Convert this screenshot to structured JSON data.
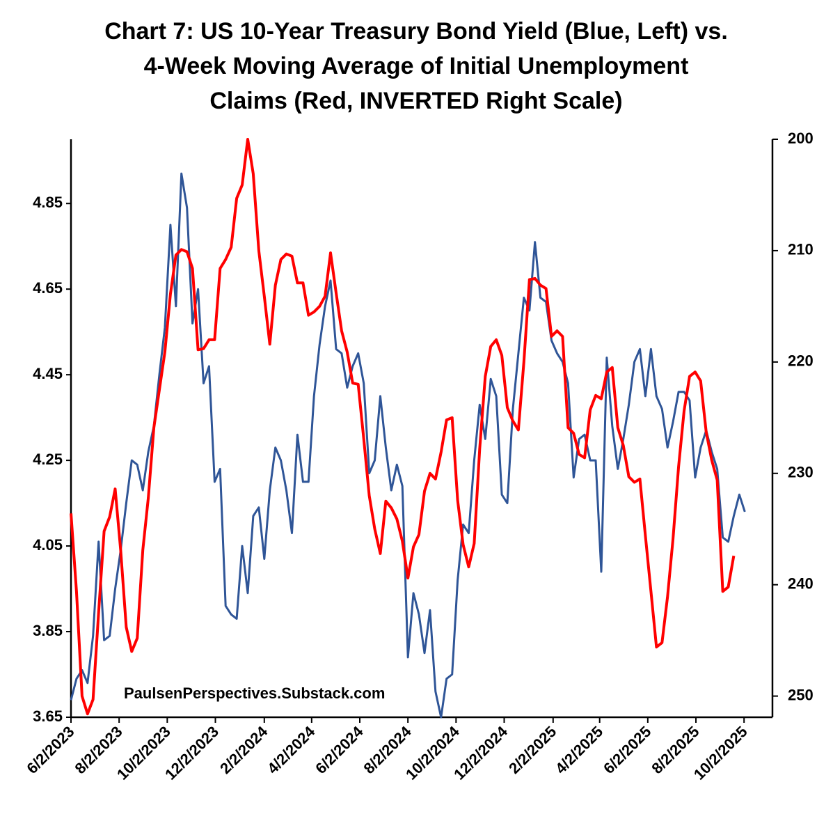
{
  "chart_data": {
    "type": "line",
    "title": [
      "Chart 7: US 10-Year Treasury Bond Yield (Blue, Left) vs.",
      "4-Week Moving Average of Initial Unemployment",
      "Claims (Red, INVERTED Right Scale)"
    ],
    "annotation": "PaulsenPerspectives.Substack.com",
    "x": [
      "2023-06-02",
      "2023-06-09",
      "2023-06-16",
      "2023-06-23",
      "2023-06-30",
      "2023-07-07",
      "2023-07-14",
      "2023-07-21",
      "2023-07-28",
      "2023-08-04",
      "2023-08-11",
      "2023-08-18",
      "2023-08-25",
      "2023-09-01",
      "2023-09-08",
      "2023-09-15",
      "2023-09-22",
      "2023-09-29",
      "2023-10-06",
      "2023-10-13",
      "2023-10-20",
      "2023-10-27",
      "2023-11-03",
      "2023-11-10",
      "2023-11-17",
      "2023-11-24",
      "2023-12-01",
      "2023-12-08",
      "2023-12-15",
      "2023-12-22",
      "2023-12-29",
      "2024-01-05",
      "2024-01-12",
      "2024-01-19",
      "2024-01-26",
      "2024-02-02",
      "2024-02-09",
      "2024-02-16",
      "2024-02-23",
      "2024-03-01",
      "2024-03-08",
      "2024-03-15",
      "2024-03-22",
      "2024-03-29",
      "2024-04-05",
      "2024-04-12",
      "2024-04-19",
      "2024-04-26",
      "2024-05-03",
      "2024-05-10",
      "2024-05-17",
      "2024-05-24",
      "2024-05-31",
      "2024-06-07",
      "2024-06-14",
      "2024-06-21",
      "2024-06-28",
      "2024-07-05",
      "2024-07-12",
      "2024-07-19",
      "2024-07-26",
      "2024-08-02",
      "2024-08-09",
      "2024-08-16",
      "2024-08-23",
      "2024-08-30",
      "2024-09-06",
      "2024-09-13",
      "2024-09-20",
      "2024-09-27",
      "2024-10-04",
      "2024-10-11",
      "2024-10-18",
      "2024-10-25",
      "2024-11-01",
      "2024-11-08",
      "2024-11-15",
      "2024-11-22",
      "2024-11-29",
      "2024-12-06",
      "2024-12-13",
      "2024-12-20",
      "2024-12-27",
      "2025-01-03",
      "2025-01-10",
      "2025-01-17",
      "2025-01-24",
      "2025-01-31",
      "2025-02-07",
      "2025-02-14",
      "2025-02-21",
      "2025-02-28",
      "2025-03-07",
      "2025-03-14",
      "2025-03-21",
      "2025-03-28",
      "2025-04-04",
      "2025-04-11",
      "2025-04-18",
      "2025-04-25",
      "2025-05-02",
      "2025-05-09",
      "2025-05-16",
      "2025-05-23",
      "2025-05-30",
      "2025-06-06",
      "2025-06-13",
      "2025-06-20",
      "2025-06-27",
      "2025-07-04",
      "2025-07-11",
      "2025-07-18",
      "2025-07-25",
      "2025-08-01",
      "2025-08-08",
      "2025-08-15",
      "2025-08-22",
      "2025-08-29",
      "2025-09-05",
      "2025-09-12",
      "2025-09-19",
      "2025-09-26",
      "2025-10-03"
    ],
    "series": [
      {
        "name": "US 10-Year Treasury Bond Yield",
        "color": "#2f5597",
        "axis": "y",
        "values": [
          3.69,
          3.74,
          3.76,
          3.73,
          3.84,
          4.06,
          3.83,
          3.84,
          3.95,
          4.04,
          4.15,
          4.25,
          4.24,
          4.18,
          4.27,
          4.33,
          4.45,
          4.56,
          4.8,
          4.61,
          4.92,
          4.84,
          4.57,
          4.65,
          4.43,
          4.47,
          4.2,
          4.23,
          3.91,
          3.89,
          3.88,
          4.05,
          3.94,
          4.12,
          4.14,
          4.02,
          4.18,
          4.28,
          4.25,
          4.18,
          4.08,
          4.31,
          4.2,
          4.2,
          4.4,
          4.52,
          4.61,
          4.67,
          4.51,
          4.5,
          4.42,
          4.47,
          4.5,
          4.43,
          4.22,
          4.25,
          4.4,
          4.28,
          4.18,
          4.24,
          4.19,
          3.79,
          3.94,
          3.89,
          3.8,
          3.9,
          3.71,
          3.65,
          3.74,
          3.75,
          3.97,
          4.1,
          4.08,
          4.25,
          4.38,
          4.3,
          4.44,
          4.4,
          4.17,
          4.15,
          4.37,
          4.5,
          4.63,
          4.6,
          4.76,
          4.63,
          4.62,
          4.53,
          4.5,
          4.48,
          4.43,
          4.21,
          4.3,
          4.31,
          4.25,
          4.25,
          3.99,
          4.49,
          4.33,
          4.23,
          4.3,
          4.38,
          4.48,
          4.51,
          4.4,
          4.51,
          4.4,
          4.37,
          4.28,
          4.34,
          4.41,
          4.41,
          4.39,
          4.21,
          4.28,
          4.32,
          4.27,
          4.23,
          4.07,
          4.06,
          4.12,
          4.17,
          4.13
        ]
      },
      {
        "name": "4-Week Moving Average of Initial Unemployment Claims",
        "color": "#ff0000",
        "axis": "y2",
        "values": [
          233.6,
          240.6,
          250.0,
          251.6,
          250.3,
          242.5,
          235.2,
          233.9,
          231.4,
          236.9,
          243.8,
          246.0,
          244.8,
          236.9,
          232.2,
          225.9,
          222.5,
          219.1,
          213.9,
          210.4,
          209.9,
          210.1,
          211.6,
          218.9,
          218.8,
          218.0,
          218.0,
          211.6,
          210.8,
          209.7,
          205.3,
          204.1,
          200.0,
          203.1,
          210.0,
          214.1,
          218.4,
          213.1,
          210.8,
          210.3,
          210.5,
          212.9,
          212.9,
          215.8,
          215.5,
          215.0,
          214.1,
          210.2,
          213.8,
          217.2,
          219.1,
          221.9,
          222.0,
          226.9,
          232.0,
          235.0,
          237.2,
          232.5,
          233.1,
          234.1,
          236.1,
          239.4,
          236.6,
          235.5,
          231.6,
          230.0,
          230.5,
          228.1,
          225.2,
          225.0,
          232.4,
          236.4,
          238.4,
          236.3,
          227.8,
          221.3,
          218.6,
          218.0,
          219.4,
          224.1,
          225.3,
          226.1,
          220.0,
          212.6,
          212.5,
          213.1,
          213.4,
          217.7,
          217.2,
          217.7,
          225.9,
          226.4,
          228.3,
          228.6,
          224.3,
          223.0,
          223.3,
          220.9,
          220.5,
          225.9,
          227.5,
          230.3,
          230.8,
          230.5,
          235.6,
          240.6,
          245.6,
          245.2,
          241.1,
          235.9,
          229.4,
          224.4,
          221.3,
          220.9,
          221.7,
          226.3,
          228.8,
          230.6,
          240.6,
          240.2,
          237.4,
          null,
          null
        ]
      }
    ],
    "xlim": [
      "2023-06-02",
      "2025-11-07"
    ],
    "xticks": [
      {
        "value": "2023-06-02",
        "label": "6/2/2023"
      },
      {
        "value": "2023-08-02",
        "label": "8/2/2023"
      },
      {
        "value": "2023-10-02",
        "label": "10/2/2023"
      },
      {
        "value": "2023-12-02",
        "label": "12/2/2023"
      },
      {
        "value": "2024-02-02",
        "label": "2/2/2024"
      },
      {
        "value": "2024-04-02",
        "label": "4/2/2024"
      },
      {
        "value": "2024-06-02",
        "label": "6/2/2024"
      },
      {
        "value": "2024-08-02",
        "label": "8/2/2024"
      },
      {
        "value": "2024-10-02",
        "label": "10/2/2024"
      },
      {
        "value": "2024-12-02",
        "label": "12/2/2024"
      },
      {
        "value": "2025-02-02",
        "label": "2/2/2025"
      },
      {
        "value": "2025-04-02",
        "label": "4/2/2025"
      },
      {
        "value": "2025-06-02",
        "label": "6/2/2025"
      },
      {
        "value": "2025-08-02",
        "label": "8/2/2025"
      },
      {
        "value": "2025-10-02",
        "label": "10/2/2025"
      }
    ],
    "ylim": [
      3.65,
      5.0
    ],
    "yticks": [
      3.65,
      3.85,
      4.05,
      4.25,
      4.45,
      4.65,
      4.85
    ],
    "y2lim": [
      200,
      251.9
    ],
    "y2ticks": [
      200,
      210,
      220,
      230,
      240,
      250
    ],
    "y2_inverted": true,
    "legend": false,
    "grid": false
  }
}
